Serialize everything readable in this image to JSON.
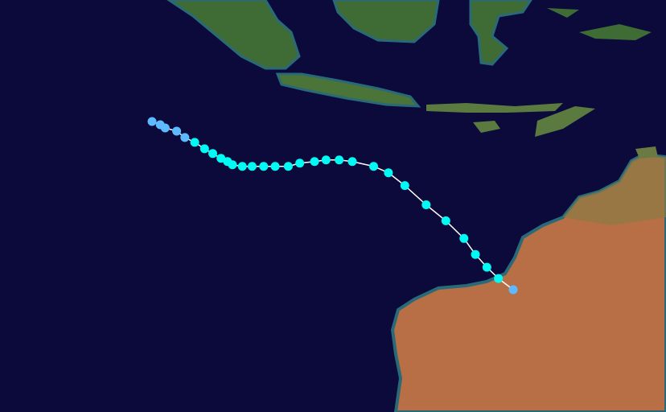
{
  "map": {
    "colors": {
      "ocean": "#0b0a3a",
      "land_green": "#3f6b35",
      "land_desert": "#b86f45",
      "shallow": "#2a6a78",
      "track_line": "#ffffff",
      "depression": "#5ebaff",
      "tropical_storm": "#00faf4"
    },
    "track": [
      {
        "lon": 96.3,
        "lat": -9.0,
        "category": "depression"
      },
      {
        "lon": 96.8,
        "lat": -9.2,
        "category": "depression"
      },
      {
        "lon": 97.1,
        "lat": -9.4,
        "category": "depression"
      },
      {
        "lon": 97.8,
        "lat": -9.6,
        "category": "depression"
      },
      {
        "lon": 98.3,
        "lat": -10.0,
        "category": "depression"
      },
      {
        "lon": 98.9,
        "lat": -10.3,
        "category": "tropical_storm"
      },
      {
        "lon": 99.5,
        "lat": -10.7,
        "category": "tropical_storm"
      },
      {
        "lon": 100.0,
        "lat": -11.0,
        "category": "tropical_storm"
      },
      {
        "lon": 100.5,
        "lat": -11.3,
        "category": "tropical_storm"
      },
      {
        "lon": 100.9,
        "lat": -11.5,
        "category": "tropical_storm"
      },
      {
        "lon": 101.2,
        "lat": -11.7,
        "category": "tropical_storm"
      },
      {
        "lon": 101.8,
        "lat": -11.8,
        "category": "tropical_storm"
      },
      {
        "lon": 102.4,
        "lat": -11.8,
        "category": "tropical_storm"
      },
      {
        "lon": 103.1,
        "lat": -11.8,
        "category": "tropical_storm"
      },
      {
        "lon": 103.8,
        "lat": -11.8,
        "category": "tropical_storm"
      },
      {
        "lon": 104.6,
        "lat": -11.8,
        "category": "tropical_storm"
      },
      {
        "lon": 105.3,
        "lat": -11.6,
        "category": "tropical_storm"
      },
      {
        "lon": 106.2,
        "lat": -11.5,
        "category": "tropical_storm"
      },
      {
        "lon": 106.9,
        "lat": -11.4,
        "category": "tropical_storm"
      },
      {
        "lon": 107.7,
        "lat": -11.4,
        "category": "tropical_storm"
      },
      {
        "lon": 108.5,
        "lat": -11.5,
        "category": "tropical_storm"
      },
      {
        "lon": 109.8,
        "lat": -11.8,
        "category": "tropical_storm"
      },
      {
        "lon": 110.7,
        "lat": -12.2,
        "category": "tropical_storm"
      },
      {
        "lon": 111.7,
        "lat": -13.0,
        "category": "tropical_storm"
      },
      {
        "lon": 113.0,
        "lat": -14.2,
        "category": "tropical_storm"
      },
      {
        "lon": 114.2,
        "lat": -15.2,
        "category": "tropical_storm"
      },
      {
        "lon": 115.3,
        "lat": -16.3,
        "category": "tropical_storm"
      },
      {
        "lon": 116.0,
        "lat": -17.3,
        "category": "tropical_storm"
      },
      {
        "lon": 116.7,
        "lat": -18.1,
        "category": "tropical_storm"
      },
      {
        "lon": 117.4,
        "lat": -18.8,
        "category": "tropical_storm"
      },
      {
        "lon": 118.3,
        "lat": -19.5,
        "category": "depression"
      }
    ]
  }
}
